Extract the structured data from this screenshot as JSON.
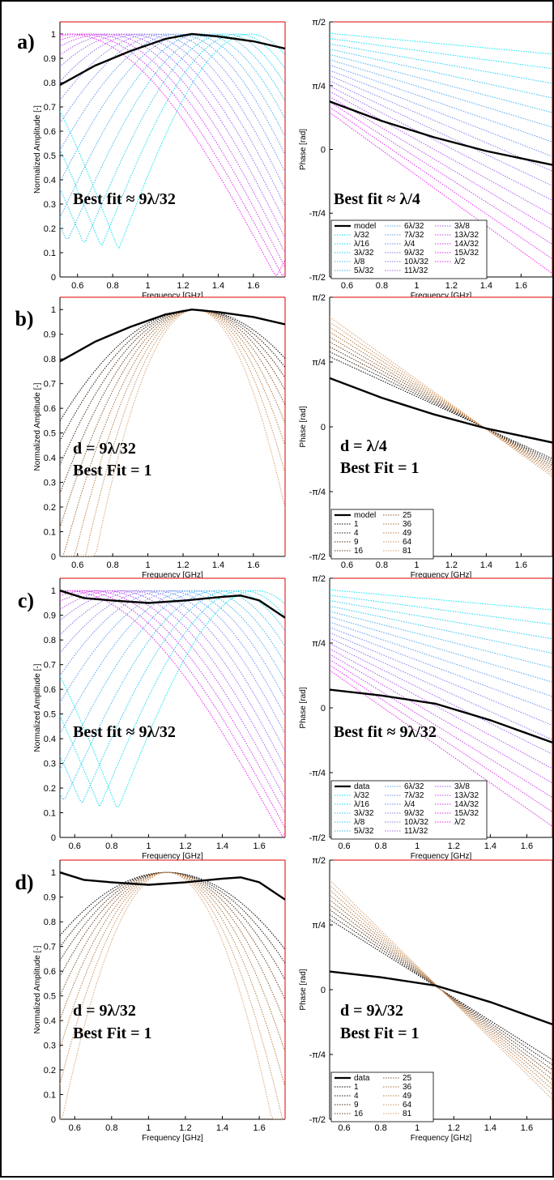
{
  "chart_data": [
    {
      "id": "a-amp",
      "row": "a)",
      "type": "line",
      "title": "",
      "xlabel": "Frequency [GHz]",
      "ylabel": "Normalized Amplitude [-]",
      "xlim": [
        0.5,
        1.78
      ],
      "ylim": [
        0,
        1.05
      ],
      "xticks": [
        "0.6",
        "0.8",
        "1",
        "1.2",
        "1.4",
        "1.6"
      ],
      "yticks": [
        "0",
        "0.1",
        "0.2",
        "0.3",
        "0.4",
        "0.5",
        "0.6",
        "0.7",
        "0.8",
        "0.9",
        "1"
      ],
      "annotations": [
        "Best fit ≈ 9λ/32"
      ],
      "series": [
        {
          "name": "model",
          "x": [
            0.5,
            0.7,
            0.9,
            1.1,
            1.25,
            1.4,
            1.6,
            1.78
          ],
          "y": [
            0.79,
            0.87,
            0.93,
            0.98,
            1.0,
            0.99,
            0.97,
            0.94
          ]
        }
      ]
    },
    {
      "id": "a-phase",
      "type": "line",
      "title": "",
      "xlabel": "Frequency [GHz]",
      "ylabel": "Phase [rad]",
      "xlim": [
        0.5,
        1.78
      ],
      "ylim": [
        -1.5708,
        1.5708
      ],
      "xticks": [
        "0.6",
        "0.8",
        "1",
        "1.2",
        "1.4",
        "1.6"
      ],
      "yticks": [
        "-π/2",
        "-π/4",
        "0",
        "π/4",
        "π/2"
      ],
      "annotations": [
        "Best fit ≈ λ/4"
      ],
      "legend": [
        "model",
        "λ/32",
        "λ/16",
        "3λ/32",
        "λ/8",
        "5λ/32",
        "6λ/32",
        "7λ/32",
        "λ/4",
        "9λ/32",
        "10λ/32",
        "11λ/32",
        "3λ/8",
        "13λ/32",
        "14λ/32",
        "15λ/32",
        "λ/2"
      ],
      "series": [
        {
          "name": "model",
          "x": [
            0.5,
            0.8,
            1.1,
            1.4,
            1.78
          ],
          "y": [
            0.59,
            0.35,
            0.15,
            -0.02,
            -0.19
          ]
        }
      ]
    },
    {
      "id": "b-amp",
      "row": "b)",
      "type": "line",
      "title": "",
      "xlabel": "Frequency [GHz]",
      "ylabel": "Normalized Amplitude [-]",
      "xlim": [
        0.5,
        1.78
      ],
      "ylim": [
        0,
        1.05
      ],
      "xticks": [
        "0.6",
        "0.8",
        "1",
        "1.2",
        "1.4",
        "1.6"
      ],
      "yticks": [
        "0",
        "0.1",
        "0.2",
        "0.3",
        "0.4",
        "0.5",
        "0.6",
        "0.7",
        "0.8",
        "0.9",
        "1"
      ],
      "annotations": [
        "d = 9λ/32",
        "Best Fit = 1"
      ],
      "series": [
        {
          "name": "model",
          "x": [
            0.5,
            0.7,
            0.9,
            1.1,
            1.25,
            1.4,
            1.6,
            1.78
          ],
          "y": [
            0.79,
            0.87,
            0.93,
            0.98,
            1.0,
            0.99,
            0.97,
            0.94
          ]
        }
      ]
    },
    {
      "id": "b-phase",
      "type": "line",
      "title": "",
      "xlabel": "Frequency [GHz]",
      "ylabel": "Phase [rad]",
      "xlim": [
        0.5,
        1.78
      ],
      "ylim": [
        -1.5708,
        1.5708
      ],
      "xticks": [
        "0.6",
        "0.8",
        "1",
        "1.2",
        "1.4",
        "1.6"
      ],
      "yticks": [
        "-π/2",
        "-π/4",
        "0",
        "π/4",
        "π/2"
      ],
      "annotations": [
        "d = λ/4",
        "Best Fit = 1"
      ],
      "legend": [
        "model",
        "1",
        "4",
        "9",
        "16",
        "25",
        "36",
        "49",
        "64",
        "81"
      ],
      "series": [
        {
          "name": "model",
          "x": [
            0.5,
            0.8,
            1.1,
            1.4,
            1.78
          ],
          "y": [
            0.59,
            0.35,
            0.15,
            -0.02,
            -0.19
          ]
        }
      ]
    },
    {
      "id": "c-amp",
      "row": "c)",
      "type": "line",
      "title": "",
      "xlabel": "Frequency [GHz]",
      "ylabel": "Normalized Amplitude [-]",
      "xlim": [
        0.52,
        1.74
      ],
      "ylim": [
        0,
        1.05
      ],
      "xticks": [
        "0.6",
        "0.8",
        "1",
        "1.2",
        "1.4",
        "1.6"
      ],
      "yticks": [
        "0",
        "0.1",
        "0.2",
        "0.3",
        "0.4",
        "0.5",
        "0.6",
        "0.7",
        "0.8",
        "0.9",
        "1"
      ],
      "annotations": [
        "Best fit ≈ 9λ/32"
      ],
      "series": [
        {
          "name": "data",
          "x": [
            0.52,
            0.65,
            0.8,
            1.0,
            1.2,
            1.4,
            1.5,
            1.6,
            1.74
          ],
          "y": [
            1.0,
            0.97,
            0.96,
            0.95,
            0.96,
            0.975,
            0.98,
            0.96,
            0.89
          ]
        }
      ]
    },
    {
      "id": "c-phase",
      "type": "line",
      "title": "",
      "xlabel": "Frequency [GHz]",
      "ylabel": "Phase [rad]",
      "xlim": [
        0.52,
        1.74
      ],
      "ylim": [
        -1.5708,
        1.5708
      ],
      "xticks": [
        "0.6",
        "0.8",
        "1",
        "1.2",
        "1.4",
        "1.6"
      ],
      "yticks": [
        "-π/2",
        "-π/4",
        "0",
        "π/4",
        "π/2"
      ],
      "annotations": [
        "Best fit ≈ 9λ/32"
      ],
      "legend": [
        "data",
        "λ/32",
        "λ/16",
        "3λ/32",
        "λ/8",
        "5λ/32",
        "6λ/32",
        "7λ/32",
        "λ/4",
        "9λ/32",
        "10λ/32",
        "11λ/32",
        "3λ/8",
        "13λ/32",
        "14λ/32",
        "15λ/32",
        "λ/2"
      ],
      "series": [
        {
          "name": "data",
          "x": [
            0.52,
            0.8,
            1.1,
            1.4,
            1.74
          ],
          "y": [
            0.22,
            0.15,
            0.05,
            -0.15,
            -0.42
          ]
        }
      ]
    },
    {
      "id": "d-amp",
      "row": "d)",
      "type": "line",
      "title": "",
      "xlabel": "Frequency [GHz]",
      "ylabel": "Normalized Amplitude [-]",
      "xlim": [
        0.52,
        1.74
      ],
      "ylim": [
        0,
        1.05
      ],
      "xticks": [
        "0.6",
        "0.8",
        "1",
        "1.2",
        "1.4",
        "1.6"
      ],
      "yticks": [
        "0",
        "0.1",
        "0.2",
        "0.3",
        "0.4",
        "0.5",
        "0.6",
        "0.7",
        "0.8",
        "0.9",
        "1"
      ],
      "annotations": [
        "d = 9λ/32",
        "Best Fit = 1"
      ],
      "series": [
        {
          "name": "data",
          "x": [
            0.52,
            0.65,
            0.8,
            1.0,
            1.2,
            1.4,
            1.5,
            1.6,
            1.74
          ],
          "y": [
            1.0,
            0.97,
            0.96,
            0.95,
            0.96,
            0.975,
            0.98,
            0.96,
            0.89
          ]
        }
      ]
    },
    {
      "id": "d-phase",
      "type": "line",
      "title": "",
      "xlabel": "Frequency [GHz]",
      "ylabel": "Phase [rad]",
      "xlim": [
        0.52,
        1.74
      ],
      "ylim": [
        -1.5708,
        1.5708
      ],
      "xticks": [
        "0.6",
        "0.8",
        "1",
        "1.2",
        "1.4",
        "1.6"
      ],
      "yticks": [
        "-π/2",
        "-π/4",
        "0",
        "π/4",
        "π/2"
      ],
      "annotations": [
        "d = 9λ/32",
        "Best Fit = 1"
      ],
      "legend": [
        "data",
        "1",
        "4",
        "9",
        "16",
        "25",
        "36",
        "49",
        "64",
        "81"
      ],
      "series": [
        {
          "name": "data",
          "x": [
            0.52,
            0.8,
            1.1,
            1.4,
            1.74
          ],
          "y": [
            0.22,
            0.15,
            0.05,
            -0.15,
            -0.42
          ]
        }
      ]
    }
  ]
}
